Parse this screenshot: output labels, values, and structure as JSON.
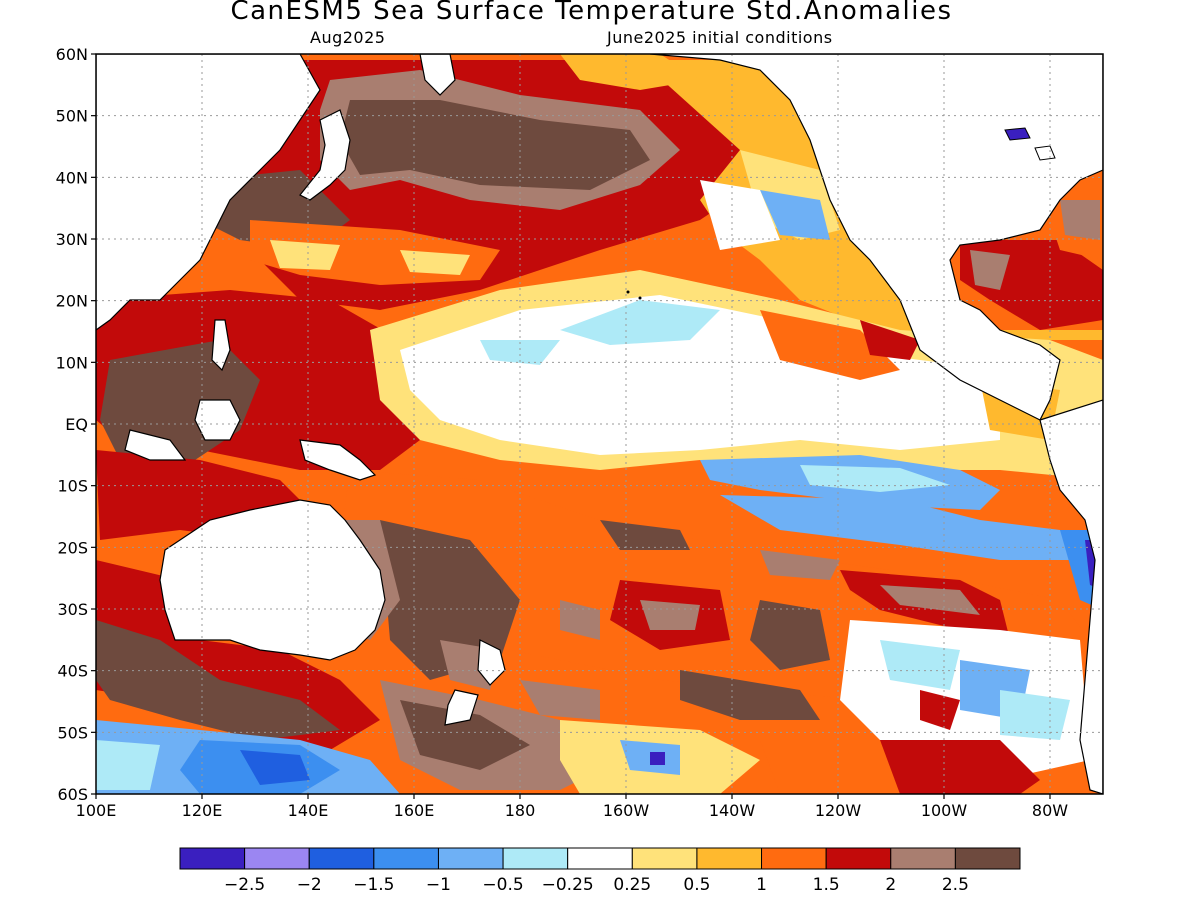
{
  "title": "CanESM5 Sea Surface Temperature Std.Anomalies",
  "valid_month": "Aug2025",
  "init_conditions": "June2025 initial conditions",
  "latitude_labels": [
    "60N",
    "50N",
    "40N",
    "30N",
    "20N",
    "10N",
    "EQ",
    "10S",
    "20S",
    "30S",
    "40S",
    "50S",
    "60S"
  ],
  "longitude_labels": [
    "100E",
    "120E",
    "140E",
    "160E",
    "180",
    "160W",
    "140W",
    "120W",
    "100W",
    "80W"
  ],
  "colorbar": {
    "labels": [
      "−2.5",
      "−2",
      "−1.5",
      "−1",
      "−0.5",
      "−0.25",
      "0.25",
      "0.5",
      "1",
      "1.5",
      "2",
      "2.5"
    ],
    "colors": [
      "#3a1fbf",
      "#9b86f2",
      "#1f5fe0",
      "#3c8ff0",
      "#6eb0f5",
      "#aeeaf7",
      "#ffffff",
      "#ffe27a",
      "#ffb92e",
      "#ff6b10",
      "#c20a0a",
      "#a97e70",
      "#6e4a3e"
    ]
  },
  "palette": {
    "land": "#ffffff",
    "coast": "#000000",
    "grid": "#999999"
  }
}
